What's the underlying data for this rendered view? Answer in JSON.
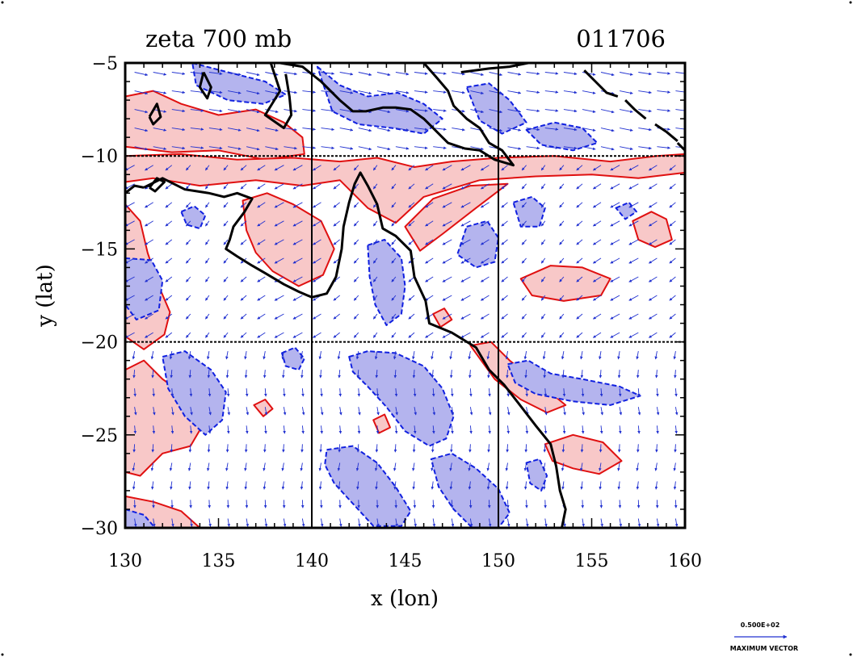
{
  "map": {
    "title_left": "zeta 700 mb",
    "title_right": "011706",
    "xlabel": "x (lon)",
    "ylabel": "y (lat)",
    "xlim": [
      130,
      160
    ],
    "ylim": [
      -30,
      -5
    ],
    "xticks": [
      130,
      135,
      140,
      145,
      150,
      155,
      160
    ],
    "yticks": [
      -5,
      -10,
      -15,
      -20,
      -25,
      -30
    ],
    "xtick_labels": [
      "130",
      "135",
      "140",
      "145",
      "150",
      "155",
      "160"
    ],
    "ytick_labels": [
      "−5",
      "−10",
      "−15",
      "−20",
      "−25",
      "−30"
    ],
    "gridlines_lon": [
      140,
      150
    ],
    "gridlines_lat": [
      -10,
      -20
    ],
    "colors": {
      "positive_fill": "#f8c8c8",
      "positive_line": "#e01010",
      "negative_fill": "#b4b4ee",
      "negative_line": "#1020e0",
      "vector": "#2030d0",
      "coast": "#000000"
    }
  },
  "legend": {
    "value": "0.500E+02",
    "label": "MAXIMUM VECTOR"
  },
  "coastline": [
    [
      [
        131.0,
        -11.7
      ],
      [
        132.0,
        -11.2
      ],
      [
        133.2,
        -11.8
      ],
      [
        134.5,
        -12.0
      ],
      [
        135.3,
        -12.2
      ],
      [
        136.0,
        -12.0
      ],
      [
        136.8,
        -12.3
      ],
      [
        136.4,
        -13.0
      ],
      [
        135.8,
        -13.8
      ],
      [
        135.6,
        -14.5
      ],
      [
        135.4,
        -15.0
      ],
      [
        136.0,
        -15.4
      ],
      [
        136.8,
        -15.9
      ],
      [
        137.5,
        -16.3
      ],
      [
        138.5,
        -16.9
      ],
      [
        139.3,
        -17.3
      ],
      [
        140.0,
        -17.6
      ],
      [
        140.8,
        -17.4
      ],
      [
        141.3,
        -16.5
      ],
      [
        141.6,
        -15.0
      ],
      [
        141.7,
        -13.8
      ],
      [
        142.0,
        -12.5
      ],
      [
        142.3,
        -11.5
      ],
      [
        142.6,
        -10.9
      ],
      [
        143.0,
        -11.6
      ],
      [
        143.5,
        -12.6
      ],
      [
        143.8,
        -13.9
      ],
      [
        144.5,
        -14.3
      ],
      [
        145.3,
        -15.1
      ],
      [
        145.5,
        -16.5
      ],
      [
        146.1,
        -17.8
      ],
      [
        146.3,
        -19.0
      ],
      [
        147.5,
        -19.5
      ],
      [
        148.8,
        -20.3
      ],
      [
        149.5,
        -21.5
      ],
      [
        150.3,
        -22.3
      ],
      [
        151.0,
        -23.2
      ],
      [
        152.0,
        -24.5
      ],
      [
        152.8,
        -25.5
      ],
      [
        153.1,
        -26.7
      ],
      [
        153.3,
        -28.0
      ],
      [
        153.6,
        -29.0
      ],
      [
        153.4,
        -30.0
      ]
    ],
    [
      [
        130.0,
        -12.0
      ],
      [
        130.5,
        -11.6
      ],
      [
        131.0,
        -11.7
      ]
    ],
    [
      [
        131.3,
        -11.7
      ],
      [
        131.7,
        -11.2
      ],
      [
        132.1,
        -11.4
      ],
      [
        131.6,
        -11.9
      ],
      [
        131.3,
        -11.7
      ]
    ],
    [
      [
        138.3,
        -5.0
      ],
      [
        139.5,
        -5.2
      ],
      [
        140.5,
        -6.0
      ],
      [
        141.5,
        -7.0
      ],
      [
        142.2,
        -7.6
      ],
      [
        142.9,
        -7.6
      ],
      [
        143.8,
        -7.4
      ],
      [
        144.5,
        -7.4
      ],
      [
        145.3,
        -7.5
      ],
      [
        146.0,
        -8.0
      ],
      [
        146.8,
        -8.8
      ],
      [
        147.3,
        -9.3
      ],
      [
        148.2,
        -9.6
      ],
      [
        149.0,
        -9.7
      ],
      [
        149.8,
        -10.2
      ],
      [
        150.8,
        -10.5
      ],
      [
        150.2,
        -9.7
      ],
      [
        149.5,
        -9.3
      ],
      [
        149.0,
        -8.5
      ],
      [
        148.3,
        -8.0
      ],
      [
        147.6,
        -7.3
      ],
      [
        147.3,
        -6.5
      ],
      [
        146.7,
        -5.8
      ],
      [
        146.0,
        -5.0
      ]
    ],
    [
      [
        137.8,
        -5.0
      ],
      [
        138.3,
        -6.5
      ],
      [
        137.5,
        -7.8
      ],
      [
        138.5,
        -8.5
      ],
      [
        138.9,
        -7.8
      ],
      [
        138.8,
        -6.8
      ],
      [
        138.6,
        -5.6
      ]
    ],
    [
      [
        134.2,
        -5.5
      ],
      [
        134.6,
        -6.3
      ],
      [
        134.4,
        -6.9
      ],
      [
        134.0,
        -6.3
      ],
      [
        134.2,
        -5.5
      ]
    ],
    [
      [
        131.3,
        -7.9
      ],
      [
        131.7,
        -7.2
      ],
      [
        131.9,
        -7.9
      ],
      [
        131.5,
        -8.3
      ],
      [
        131.3,
        -7.9
      ]
    ],
    [
      [
        148.0,
        -5.5
      ],
      [
        149.5,
        -5.3
      ],
      [
        150.6,
        -5.2
      ],
      [
        151.6,
        -5.0
      ]
    ],
    [
      [
        154.6,
        -5.4
      ],
      [
        155.2,
        -6.0
      ],
      [
        155.8,
        -6.6
      ],
      [
        156.4,
        -6.8
      ]
    ],
    [
      [
        156.8,
        -7.0
      ],
      [
        157.3,
        -7.5
      ],
      [
        157.9,
        -8.0
      ]
    ],
    [
      [
        158.4,
        -8.3
      ],
      [
        159.0,
        -8.7
      ],
      [
        159.6,
        -9.2
      ]
    ],
    [
      [
        159.6,
        -9.3
      ],
      [
        160.0,
        -9.7
      ]
    ]
  ],
  "vorticity_positive": [
    [
      [
        130.0,
        -6.8
      ],
      [
        131.5,
        -6.5
      ],
      [
        133.0,
        -7.2
      ],
      [
        135.0,
        -7.8
      ],
      [
        137.0,
        -7.5
      ],
      [
        138.5,
        -8.2
      ],
      [
        139.5,
        -9.0
      ],
      [
        139.6,
        -9.9
      ],
      [
        137.5,
        -10.2
      ],
      [
        135.0,
        -9.7
      ],
      [
        132.5,
        -9.8
      ],
      [
        130.0,
        -9.5
      ]
    ],
    [
      [
        130.0,
        -10.0
      ],
      [
        133.0,
        -9.9
      ],
      [
        136.0,
        -10.2
      ],
      [
        139.0,
        -10.1
      ],
      [
        141.5,
        -10.3
      ],
      [
        143.5,
        -10.1
      ],
      [
        145.5,
        -10.6
      ],
      [
        147.5,
        -10.3
      ],
      [
        150.0,
        -10.1
      ],
      [
        153.0,
        -10.0
      ],
      [
        156.0,
        -10.3
      ],
      [
        158.5,
        -10.0
      ],
      [
        160.0,
        -9.9
      ],
      [
        160.0,
        -10.9
      ],
      [
        157.5,
        -11.2
      ],
      [
        155.0,
        -11.0
      ],
      [
        152.0,
        -11.1
      ],
      [
        149.0,
        -11.3
      ],
      [
        146.0,
        -12.2
      ],
      [
        144.5,
        -13.6
      ],
      [
        143.0,
        -12.8
      ],
      [
        141.5,
        -11.3
      ],
      [
        139.5,
        -11.6
      ],
      [
        137.0,
        -11.3
      ],
      [
        134.0,
        -11.6
      ],
      [
        131.5,
        -11.2
      ],
      [
        130.0,
        -11.4
      ]
    ],
    [
      [
        136.3,
        -12.4
      ],
      [
        137.6,
        -12.0
      ],
      [
        139.0,
        -12.6
      ],
      [
        140.5,
        -13.5
      ],
      [
        141.2,
        -15.0
      ],
      [
        140.6,
        -16.4
      ],
      [
        139.3,
        -17.0
      ],
      [
        137.9,
        -16.2
      ],
      [
        137.0,
        -15.2
      ],
      [
        136.5,
        -14.0
      ]
    ],
    [
      [
        130.0,
        -12.6
      ],
      [
        130.8,
        -13.5
      ],
      [
        131.2,
        -15.2
      ],
      [
        131.8,
        -17.0
      ],
      [
        132.4,
        -18.4
      ],
      [
        132.1,
        -19.6
      ],
      [
        131.0,
        -20.4
      ],
      [
        130.0,
        -19.7
      ]
    ],
    [
      [
        130.0,
        -21.5
      ],
      [
        131.0,
        -21.0
      ],
      [
        132.0,
        -22.0
      ],
      [
        133.4,
        -23.0
      ],
      [
        134.2,
        -24.4
      ],
      [
        133.5,
        -25.6
      ],
      [
        132.0,
        -26.0
      ],
      [
        130.8,
        -27.2
      ],
      [
        130.0,
        -27.0
      ]
    ],
    [
      [
        145.0,
        -13.8
      ],
      [
        146.5,
        -12.3
      ],
      [
        148.5,
        -11.6
      ],
      [
        150.5,
        -11.5
      ],
      [
        148.8,
        -12.8
      ],
      [
        147.0,
        -14.2
      ],
      [
        145.8,
        -15.1
      ]
    ],
    [
      [
        157.2,
        -13.5
      ],
      [
        158.2,
        -13.0
      ],
      [
        159.0,
        -13.4
      ],
      [
        159.3,
        -14.5
      ],
      [
        158.4,
        -14.9
      ],
      [
        157.5,
        -14.5
      ]
    ],
    [
      [
        151.2,
        -16.6
      ],
      [
        152.8,
        -15.9
      ],
      [
        154.5,
        -16.0
      ],
      [
        156.0,
        -16.6
      ],
      [
        155.5,
        -17.5
      ],
      [
        153.5,
        -17.8
      ],
      [
        151.8,
        -17.5
      ]
    ],
    [
      [
        148.5,
        -20.2
      ],
      [
        149.6,
        -20.0
      ],
      [
        150.6,
        -21.0
      ],
      [
        152.5,
        -22.5
      ],
      [
        153.6,
        -23.4
      ],
      [
        152.6,
        -23.8
      ],
      [
        151.2,
        -23.1
      ],
      [
        149.8,
        -22.0
      ]
    ],
    [
      [
        152.5,
        -25.5
      ],
      [
        154.0,
        -25.0
      ],
      [
        155.6,
        -25.4
      ],
      [
        156.6,
        -26.4
      ],
      [
        155.4,
        -27.1
      ],
      [
        154.0,
        -26.8
      ],
      [
        152.9,
        -26.4
      ]
    ],
    [
      [
        136.9,
        -23.4
      ],
      [
        137.5,
        -23.1
      ],
      [
        137.9,
        -23.6
      ],
      [
        137.4,
        -24.0
      ]
    ],
    [
      [
        146.5,
        -18.5
      ],
      [
        147.1,
        -18.2
      ],
      [
        147.5,
        -18.8
      ],
      [
        146.9,
        -19.2
      ]
    ],
    [
      [
        143.3,
        -24.2
      ],
      [
        143.9,
        -23.9
      ],
      [
        144.2,
        -24.6
      ],
      [
        143.6,
        -24.9
      ]
    ],
    [
      [
        130.0,
        -28.3
      ],
      [
        131.5,
        -28.6
      ],
      [
        133.0,
        -29.1
      ],
      [
        134.0,
        -30.0
      ],
      [
        130.0,
        -30.0
      ]
    ]
  ],
  "vorticity_negative": [
    [
      [
        133.6,
        -5.0
      ],
      [
        135.5,
        -5.5
      ],
      [
        137.5,
        -6.0
      ],
      [
        138.6,
        -6.7
      ],
      [
        137.4,
        -7.2
      ],
      [
        135.5,
        -7.0
      ],
      [
        133.8,
        -6.2
      ]
    ],
    [
      [
        140.3,
        -5.2
      ],
      [
        141.5,
        -6.2
      ],
      [
        143.0,
        -6.8
      ],
      [
        144.6,
        -6.6
      ],
      [
        146.0,
        -7.2
      ],
      [
        147.0,
        -8.0
      ],
      [
        146.0,
        -8.8
      ],
      [
        144.3,
        -8.5
      ],
      [
        142.5,
        -8.3
      ],
      [
        141.1,
        -7.6
      ]
    ],
    [
      [
        148.3,
        -6.3
      ],
      [
        149.5,
        -6.1
      ],
      [
        150.6,
        -7.0
      ],
      [
        151.5,
        -8.2
      ],
      [
        150.2,
        -8.8
      ],
      [
        149.0,
        -8.1
      ]
    ],
    [
      [
        151.5,
        -8.6
      ],
      [
        153.0,
        -8.2
      ],
      [
        154.5,
        -8.5
      ],
      [
        155.3,
        -9.3
      ],
      [
        154.0,
        -9.7
      ],
      [
        152.3,
        -9.4
      ]
    ],
    [
      [
        150.8,
        -12.5
      ],
      [
        151.8,
        -12.2
      ],
      [
        152.5,
        -12.8
      ],
      [
        152.2,
        -13.8
      ],
      [
        151.2,
        -13.8
      ]
    ],
    [
      [
        148.3,
        -13.8
      ],
      [
        149.4,
        -13.5
      ],
      [
        150.0,
        -14.4
      ],
      [
        149.8,
        -15.7
      ],
      [
        148.8,
        -16.0
      ],
      [
        147.8,
        -15.3
      ]
    ],
    [
      [
        130.0,
        -15.5
      ],
      [
        131.4,
        -15.6
      ],
      [
        132.0,
        -16.7
      ],
      [
        131.8,
        -18.3
      ],
      [
        130.6,
        -18.8
      ],
      [
        130.0,
        -18.0
      ]
    ],
    [
      [
        143.0,
        -14.8
      ],
      [
        143.9,
        -14.5
      ],
      [
        144.8,
        -15.5
      ],
      [
        145.0,
        -17.0
      ],
      [
        144.8,
        -18.5
      ],
      [
        144.0,
        -19.1
      ],
      [
        143.4,
        -18.0
      ],
      [
        143.1,
        -16.5
      ]
    ],
    [
      [
        132.0,
        -20.8
      ],
      [
        133.2,
        -20.5
      ],
      [
        134.6,
        -21.5
      ],
      [
        135.4,
        -22.7
      ],
      [
        135.2,
        -24.2
      ],
      [
        134.3,
        -25.0
      ],
      [
        133.2,
        -24.0
      ],
      [
        132.3,
        -22.5
      ]
    ],
    [
      [
        150.5,
        -21.2
      ],
      [
        151.6,
        -21.0
      ],
      [
        152.8,
        -21.7
      ],
      [
        154.5,
        -22.0
      ],
      [
        156.5,
        -22.4
      ],
      [
        157.6,
        -22.9
      ],
      [
        156.0,
        -23.4
      ],
      [
        154.0,
        -23.2
      ],
      [
        152.0,
        -22.8
      ],
      [
        150.9,
        -22.2
      ]
    ],
    [
      [
        142.0,
        -20.8
      ],
      [
        143.0,
        -20.5
      ],
      [
        144.5,
        -20.6
      ],
      [
        146.0,
        -21.3
      ],
      [
        147.0,
        -22.5
      ],
      [
        147.6,
        -24.0
      ],
      [
        147.2,
        -25.2
      ],
      [
        146.3,
        -25.6
      ],
      [
        145.0,
        -24.8
      ],
      [
        144.0,
        -23.5
      ],
      [
        143.0,
        -22.4
      ],
      [
        142.2,
        -21.6
      ]
    ],
    [
      [
        140.8,
        -25.8
      ],
      [
        142.2,
        -25.6
      ],
      [
        143.5,
        -26.5
      ],
      [
        144.5,
        -27.8
      ],
      [
        145.3,
        -29.1
      ],
      [
        144.8,
        -29.9
      ],
      [
        143.3,
        -29.9
      ],
      [
        142.3,
        -28.8
      ],
      [
        141.2,
        -27.6
      ],
      [
        140.7,
        -26.6
      ]
    ],
    [
      [
        146.4,
        -26.3
      ],
      [
        147.5,
        -26.0
      ],
      [
        148.8,
        -26.8
      ],
      [
        150.0,
        -27.9
      ],
      [
        150.6,
        -29.2
      ],
      [
        150.0,
        -30.0
      ],
      [
        148.6,
        -30.0
      ],
      [
        147.6,
        -29.0
      ],
      [
        146.8,
        -27.8
      ]
    ],
    [
      [
        151.5,
        -26.5
      ],
      [
        152.2,
        -26.3
      ],
      [
        152.6,
        -27.2
      ],
      [
        152.3,
        -28.0
      ],
      [
        151.7,
        -27.6
      ]
    ],
    [
      [
        130.0,
        -29.0
      ],
      [
        131.0,
        -29.3
      ],
      [
        131.6,
        -30.0
      ],
      [
        130.0,
        -30.0
      ]
    ],
    [
      [
        138.4,
        -20.6
      ],
      [
        139.1,
        -20.3
      ],
      [
        139.6,
        -20.9
      ],
      [
        139.3,
        -21.5
      ],
      [
        138.6,
        -21.3
      ]
    ],
    [
      [
        133.0,
        -13.0
      ],
      [
        133.7,
        -12.7
      ],
      [
        134.3,
        -13.2
      ],
      [
        134.0,
        -13.9
      ],
      [
        133.3,
        -13.7
      ]
    ],
    [
      [
        156.3,
        -12.8
      ],
      [
        157.0,
        -12.5
      ],
      [
        157.4,
        -13.0
      ],
      [
        156.8,
        -13.4
      ]
    ]
  ]
}
